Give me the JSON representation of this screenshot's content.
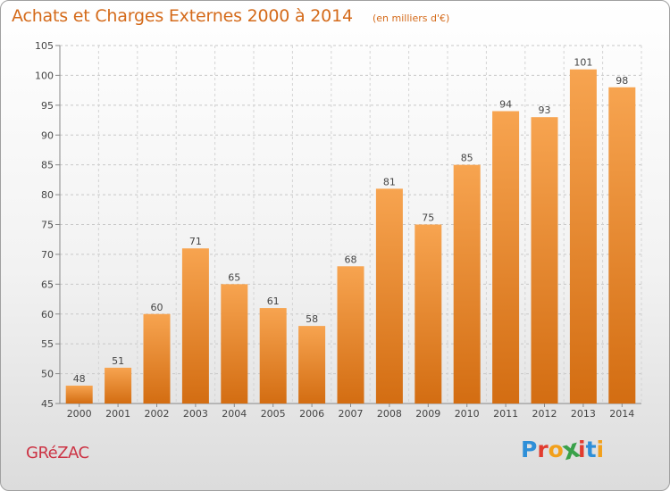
{
  "header": {
    "title": "Achats et Charges Externes 2000 à 2014",
    "subtitle": "(en milliers d'€)"
  },
  "footer": {
    "place": "GRéZAC",
    "logo": {
      "letters": [
        "P",
        "r",
        "o",
        "x",
        "i",
        "t",
        "i"
      ],
      "colors": [
        "#2e8fd8",
        "#e23c2f",
        "#f2a01b",
        "#3aa14a",
        "#e23c2f",
        "#2e8fd8",
        "#f2a01b"
      ]
    }
  },
  "chart_data": {
    "type": "bar",
    "categories": [
      "2000",
      "2001",
      "2002",
      "2003",
      "2004",
      "2005",
      "2006",
      "2007",
      "2008",
      "2009",
      "2010",
      "2011",
      "2012",
      "2013",
      "2014"
    ],
    "values": [
      48,
      51,
      60,
      71,
      65,
      61,
      58,
      68,
      81,
      75,
      85,
      94,
      93,
      101,
      98
    ],
    "ylim": [
      45,
      105
    ],
    "yticks": [
      45,
      50,
      55,
      60,
      65,
      70,
      75,
      80,
      85,
      90,
      95,
      100,
      105
    ],
    "bar_color_light": "#f7a450",
    "bar_color_dark": "#d36d12",
    "grid": true,
    "grid_style": "dashed",
    "data_labels": true
  }
}
